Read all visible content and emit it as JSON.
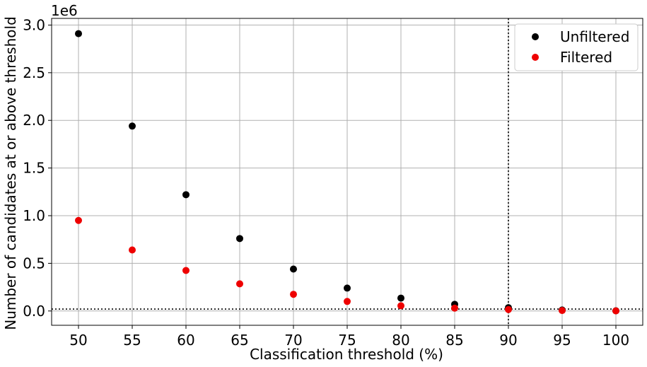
{
  "chart_data": {
    "type": "scatter",
    "xlabel": "Classification threshold (%)",
    "ylabel": "Number of candidates at or above threshold",
    "y_offset_text": "1e6",
    "x": [
      50,
      55,
      60,
      65,
      70,
      75,
      80,
      85,
      90,
      95,
      100
    ],
    "xticks": [
      "50",
      "55",
      "60",
      "65",
      "70",
      "75",
      "80",
      "85",
      "90",
      "95",
      "100"
    ],
    "yticks": [
      "0.0",
      "0.5",
      "1.0",
      "1.5",
      "2.0",
      "2.5",
      "3.0"
    ],
    "ytick_values": [
      0,
      0.5,
      1.0,
      1.5,
      2.0,
      2.5,
      3.0
    ],
    "xlim": [
      47.5,
      102.5
    ],
    "ylim": [
      -0.15,
      3.07
    ],
    "y_scale": 1000000,
    "grid": true,
    "legend_position": "top-right",
    "series": [
      {
        "name": "Unfiltered",
        "color": "#000000",
        "values": [
          2910000,
          1940000,
          1220000,
          760000,
          440000,
          240000,
          135000,
          70000,
          35000,
          10000,
          2000
        ]
      },
      {
        "name": "Filtered",
        "color": "#ee0000",
        "values": [
          950000,
          640000,
          425000,
          285000,
          175000,
          100000,
          55000,
          30000,
          15000,
          5000,
          1000
        ]
      }
    ],
    "reference_lines": [
      {
        "orientation": "vertical",
        "x": 90,
        "style": "dotted"
      },
      {
        "orientation": "horizontal",
        "y": 20000,
        "style": "dotted"
      }
    ]
  }
}
